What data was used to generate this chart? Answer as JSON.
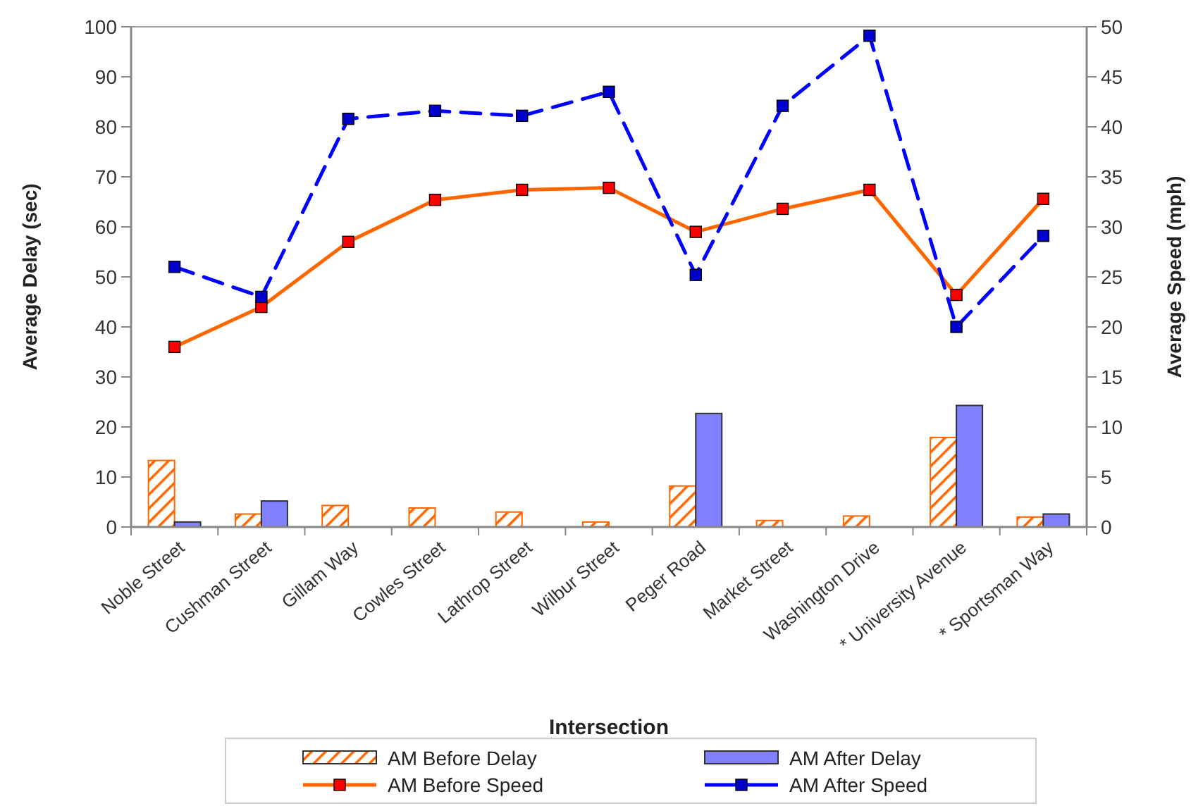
{
  "chart_data": {
    "type": "bar",
    "xlabel": "Intersection",
    "ylabel": "Average Delay (sec)",
    "y2label": "Average Speed (mph)",
    "categories": [
      "Noble Street",
      "Cushman Street",
      "Gillam Way",
      "Cowles Street",
      "Lathrop Street",
      "Wilbur Street",
      "Peger Road",
      "Market Street",
      "Washington Drive",
      "*  University Avenue",
      "* Sportsman Way"
    ],
    "ylim": [
      0,
      100
    ],
    "yticks": [
      0,
      10,
      20,
      30,
      40,
      50,
      60,
      70,
      80,
      90,
      100
    ],
    "y2lim": [
      0,
      50
    ],
    "y2ticks": [
      0,
      5,
      10,
      15,
      20,
      25,
      30,
      35,
      40,
      45,
      50
    ],
    "grid": false,
    "legend": "bottom",
    "marker": "square",
    "series": [
      {
        "name": "AM Before Delay",
        "color": "#ff6600",
        "values": [
          13.3,
          2.6,
          4.3,
          3.8,
          3.0,
          1.0,
          8.2,
          1.3,
          2.2,
          17.9,
          2.0
        ]
      },
      {
        "name": "AM After Delay",
        "color": "#8080ff",
        "values": [
          1.0,
          5.2,
          null,
          null,
          null,
          null,
          22.7,
          null,
          null,
          24.3,
          2.6
        ]
      },
      {
        "name": "AM Before Speed",
        "type": "line",
        "axis": "y2",
        "color": "#ff6600",
        "line_style": "solid",
        "values": [
          18,
          22,
          28.5,
          32.7,
          33.7,
          33.9,
          29.5,
          31.8,
          33.7,
          23.2,
          32.8
        ]
      },
      {
        "name": "AM After Speed",
        "type": "line",
        "axis": "y2",
        "color": "#0000ff",
        "line_style": "dashed",
        "values": [
          26,
          23,
          40.8,
          41.6,
          41.1,
          43.5,
          25.2,
          42.1,
          49.1,
          20,
          29.1
        ]
      }
    ]
  }
}
